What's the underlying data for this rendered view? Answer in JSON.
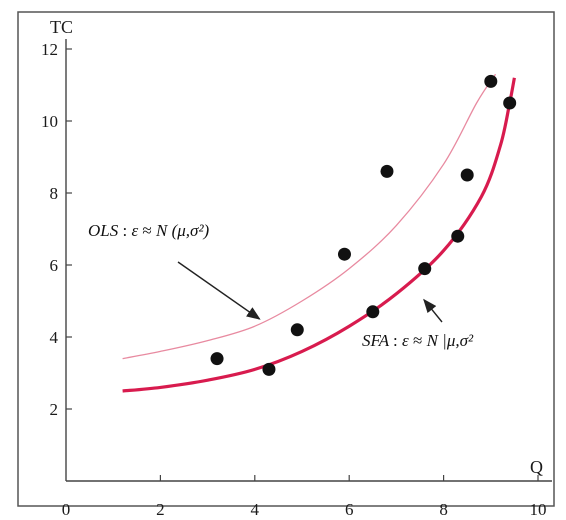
{
  "chart_data": {
    "type": "scatter",
    "title": "",
    "xlabel": "Q",
    "ylabel": "TC",
    "xlim": [
      0,
      10
    ],
    "ylim": [
      0,
      12
    ],
    "x_ticks": [
      "0",
      "2",
      "4",
      "6",
      "8",
      "10"
    ],
    "y_ticks": [
      "2",
      "4",
      "6",
      "8",
      "10",
      "12"
    ],
    "grid": false,
    "colors": {
      "points": "#111111",
      "ols_curve": "#e88aa0",
      "sfa_curve": "#d81b4e",
      "frame": "#555555"
    },
    "series": [
      {
        "type": "scatter",
        "points": [
          {
            "x": 3.2,
            "y": 3.4
          },
          {
            "x": 4.3,
            "y": 3.1
          },
          {
            "x": 4.9,
            "y": 4.2
          },
          {
            "x": 5.9,
            "y": 6.3
          },
          {
            "x": 6.5,
            "y": 4.7
          },
          {
            "x": 6.8,
            "y": 8.6
          },
          {
            "x": 7.6,
            "y": 5.9
          },
          {
            "x": 8.3,
            "y": 6.8
          },
          {
            "x": 8.5,
            "y": 8.5
          },
          {
            "x": 9.0,
            "y": 11.1
          },
          {
            "x": 9.4,
            "y": 10.5
          }
        ]
      },
      {
        "type": "line",
        "points": [
          {
            "x": 1.2,
            "y": 3.4
          },
          {
            "x": 2.0,
            "y": 3.6
          },
          {
            "x": 3.0,
            "y": 3.9
          },
          {
            "x": 4.0,
            "y": 4.3
          },
          {
            "x": 5.0,
            "y": 5.0
          },
          {
            "x": 6.0,
            "y": 5.9
          },
          {
            "x": 7.0,
            "y": 7.1
          },
          {
            "x": 8.0,
            "y": 8.8
          },
          {
            "x": 8.7,
            "y": 10.5
          },
          {
            "x": 9.1,
            "y": 11.3
          }
        ]
      },
      {
        "type": "line",
        "points": [
          {
            "x": 1.2,
            "y": 2.5
          },
          {
            "x": 2.0,
            "y": 2.6
          },
          {
            "x": 3.0,
            "y": 2.8
          },
          {
            "x": 4.0,
            "y": 3.1
          },
          {
            "x": 5.0,
            "y": 3.6
          },
          {
            "x": 6.0,
            "y": 4.3
          },
          {
            "x": 7.0,
            "y": 5.2
          },
          {
            "x": 8.0,
            "y": 6.4
          },
          {
            "x": 8.8,
            "y": 7.9
          },
          {
            "x": 9.2,
            "y": 9.3
          },
          {
            "x": 9.4,
            "y": 10.5
          },
          {
            "x": 9.5,
            "y": 11.2
          }
        ]
      }
    ],
    "annotations": {
      "ols": {
        "prefix": "OLS",
        "colon": ":",
        "eps": "ε",
        "approx": "≈",
        "N": "N",
        "args": "(μ,σ²)"
      },
      "sfa": {
        "prefix": "SFA",
        "colon": ":",
        "eps": "ε",
        "approx": "≈",
        "N": "N",
        "args": "|μ,σ²"
      },
      "ols_arrow_target": {
        "x": 4.1,
        "y": 4.5
      },
      "sfa_arrow_target": {
        "x": 7.5,
        "y": 5.2
      }
    }
  }
}
